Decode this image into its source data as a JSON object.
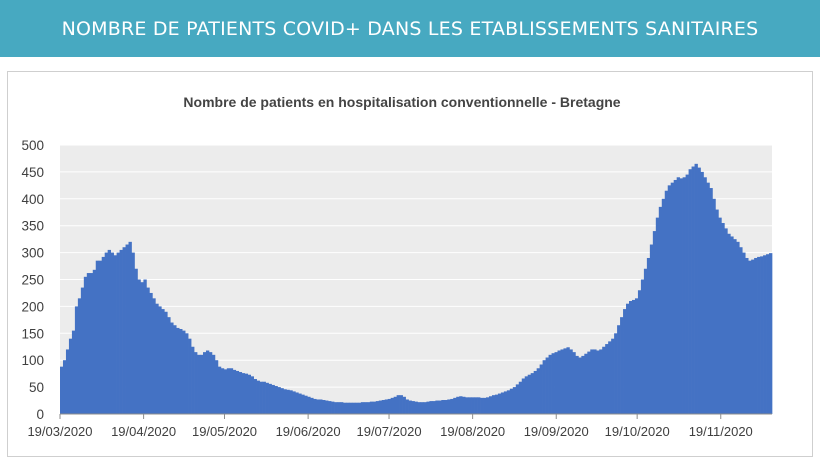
{
  "banner": {
    "title": "NOMBRE DE PATIENTS COVID+ DANS LES ETABLISSEMENTS SANITAIRES",
    "background": "#47a9c1"
  },
  "chart_data": {
    "type": "area",
    "title": "Nombre de patients en hospitalisation conventionnelle - Bretagne",
    "xlabel": "",
    "ylabel": "",
    "ylim": [
      0,
      500
    ],
    "yticks": [
      0,
      50,
      100,
      150,
      200,
      250,
      300,
      350,
      400,
      450,
      500
    ],
    "x_start": "19/03/2020",
    "x_end": "08/12/2020",
    "x_tick_labels": [
      "19/03/2020",
      "19/04/2020",
      "19/05/2020",
      "19/06/2020",
      "19/07/2020",
      "19/08/2020",
      "19/09/2020",
      "19/10/2020",
      "19/11/2020"
    ],
    "grid": true,
    "fill_color": "#4472c4",
    "plot_background": "#ececec",
    "series": [
      {
        "values": [
          88,
          100,
          120,
          140,
          155,
          200,
          215,
          235,
          255,
          262,
          262,
          268,
          285,
          285,
          292,
          300,
          305,
          300,
          295,
          300,
          305,
          310,
          315,
          320,
          300,
          270,
          250,
          245,
          250,
          235,
          225,
          215,
          205,
          200,
          195,
          190,
          180,
          170,
          165,
          160,
          158,
          155,
          150,
          140,
          125,
          115,
          110,
          110,
          115,
          118,
          115,
          110,
          100,
          88,
          85,
          83,
          85,
          85,
          82,
          80,
          78,
          76,
          75,
          73,
          70,
          65,
          62,
          60,
          60,
          58,
          56,
          54,
          52,
          50,
          48,
          46,
          45,
          44,
          42,
          40,
          38,
          36,
          34,
          32,
          30,
          28,
          27,
          27,
          26,
          25,
          24,
          23,
          22,
          22,
          22,
          21,
          21,
          21,
          21,
          21,
          21,
          22,
          22,
          22,
          23,
          23,
          24,
          25,
          26,
          27,
          28,
          30,
          32,
          35,
          35,
          32,
          27,
          25,
          24,
          23,
          22,
          22,
          22,
          23,
          24,
          24,
          25,
          25,
          26,
          26,
          27,
          28,
          30,
          32,
          33,
          32,
          31,
          31,
          31,
          31,
          31,
          30,
          30,
          31,
          33,
          35,
          36,
          38,
          40,
          42,
          44,
          47,
          50,
          55,
          60,
          66,
          70,
          73,
          76,
          80,
          85,
          92,
          100,
          105,
          110,
          113,
          115,
          118,
          120,
          122,
          124,
          120,
          115,
          108,
          105,
          108,
          112,
          116,
          120,
          120,
          118,
          120,
          125,
          130,
          135,
          140,
          150,
          165,
          180,
          195,
          205,
          210,
          212,
          215,
          230,
          250,
          270,
          290,
          315,
          340,
          365,
          385,
          400,
          415,
          425,
          430,
          435,
          440,
          438,
          440,
          445,
          455,
          460,
          465,
          458,
          450,
          440,
          430,
          420,
          400,
          380,
          365,
          355,
          345,
          335,
          330,
          325,
          320,
          310,
          300,
          290,
          285,
          287,
          290,
          292,
          293,
          295,
          297,
          299
        ]
      }
    ]
  }
}
